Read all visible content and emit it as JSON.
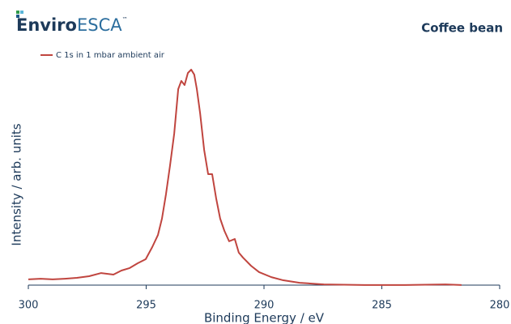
{
  "chart_data": {
    "type": "line",
    "logo": {
      "strong": "Enviro",
      "light": "ESCA",
      "mark": "™"
    },
    "title": "Coffee bean",
    "x_label": "Binding Energy / eV",
    "y_label": "Intensity / arb. units",
    "xlim": [
      300,
      280
    ],
    "xticks": [
      300,
      295,
      290,
      285,
      280
    ],
    "ylim": [
      0,
      100
    ],
    "legend": "top-left",
    "x": [
      300.0,
      299.48,
      298.97,
      298.45,
      297.94,
      297.42,
      296.91,
      296.39,
      296.05,
      295.7,
      295.36,
      295.02,
      294.74,
      294.5,
      294.33,
      294.16,
      293.99,
      293.81,
      293.64,
      293.51,
      293.37,
      293.23,
      293.09,
      292.96,
      292.85,
      292.71,
      292.54,
      292.37,
      292.2,
      292.03,
      291.86,
      291.68,
      291.48,
      291.24,
      291.07,
      290.89,
      290.55,
      290.21,
      289.69,
      289.18,
      288.49,
      287.46,
      285.74,
      284.02,
      282.3,
      281.62
    ],
    "series": [
      {
        "name": "C 1s in 1 mbar ambient air",
        "color": "#c0453f",
        "values": [
          3.6,
          3.9,
          3.6,
          3.9,
          4.3,
          5.0,
          6.4,
          5.7,
          7.5,
          8.6,
          10.7,
          12.5,
          17.9,
          23.2,
          30.4,
          41.1,
          53.6,
          67.9,
          87.5,
          91.1,
          89.3,
          94.6,
          96.1,
          93.9,
          87.5,
          76.8,
          60.7,
          50.0,
          50.0,
          39.3,
          30.4,
          25.0,
          20.4,
          21.4,
          15.4,
          13.2,
          9.6,
          6.8,
          4.6,
          3.2,
          2.1,
          1.4,
          1.1,
          1.1,
          1.4,
          1.1
        ]
      }
    ]
  }
}
